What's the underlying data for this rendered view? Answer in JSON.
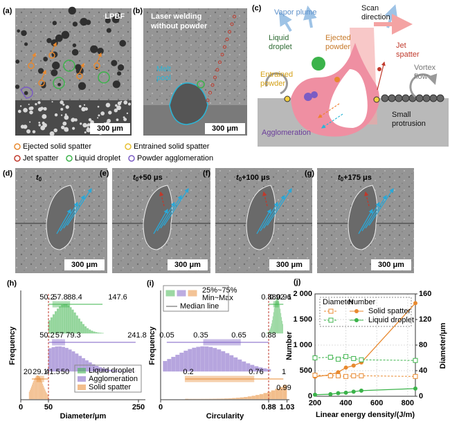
{
  "a": {
    "letter": "(a)",
    "label": "LPBF",
    "scale_bar": "300 μm"
  },
  "b": {
    "letter": "(b)",
    "title_lines": [
      "Laser welding",
      "without powder"
    ],
    "melt_pool_lines": [
      "Melt",
      "pool"
    ],
    "scale_bar": "300 μm"
  },
  "c": {
    "letter": "(c)",
    "vapor_plume": "Vapor plume",
    "scan_direction": [
      "Scan",
      "direction"
    ],
    "liquid_droplet": [
      "Liquid",
      "droplet"
    ],
    "ejected_powder": [
      "Ejected",
      "powder"
    ],
    "jet_spatter": [
      "Jet",
      "spatter"
    ],
    "entrained_powder": [
      "Entrained",
      "powder"
    ],
    "vortex_flow": [
      "Vortex",
      "flow"
    ],
    "agglomeration": "Agglomeration",
    "small_protrusion": [
      "Small",
      "protrusion"
    ]
  },
  "legend": [
    {
      "label": "Ejected solid spatter",
      "color": "#e8892f"
    },
    {
      "label": "Entrained solid spatter",
      "color": "#e8c02f"
    },
    {
      "label": "Jet spatter",
      "color": "#c0392b"
    },
    {
      "label": "Liquid droplet",
      "color": "#3bb34a"
    },
    {
      "label": "Powder agglomeration",
      "color": "#7b5cc4"
    }
  ],
  "frames": [
    {
      "letter": "(d)",
      "time": {
        "symbol": "t",
        "subscript": "0"
      },
      "scale_bar": "300 μm"
    },
    {
      "letter": "(e)",
      "time": {
        "symbol": "t",
        "subscript": "0",
        "offset": "+50 μs"
      },
      "scale_bar": "300 μm"
    },
    {
      "letter": "(f)",
      "time": {
        "symbol": "t",
        "subscript": "0",
        "offset": "+100 μs"
      },
      "scale_bar": "300 μm"
    },
    {
      "letter": "(g)",
      "time": {
        "symbol": "t",
        "subscript": "0",
        "offset": "+175 μs"
      },
      "scale_bar": "300 μm"
    }
  ],
  "h": {
    "letter": "(h)",
    "y_label": "Frequency",
    "x_label": "Diameter/μm",
    "x_ticks": [
      0,
      50,
      250
    ],
    "boxes": [
      {
        "stats": [
          50.2,
          57.8,
          88.4,
          147.6
        ],
        "color": "#3bb34a"
      },
      {
        "stats": [
          50.2,
          57,
          79.3,
          241.8
        ],
        "color": "#7b5cc4"
      },
      {
        "stats": [
          20,
          29.1,
          41.5,
          50
        ],
        "color": "#e8892f"
      }
    ],
    "legend": [
      "Liquid droplet",
      "Agglomeration",
      "Solid spatter"
    ]
  },
  "i": {
    "letter": "(i)",
    "y_label": "Frequency",
    "x_label": "Circularity",
    "x_ticks": [
      0,
      0.88,
      1.03
    ],
    "box_legend": [
      "25%~75%",
      "Min~Max",
      "Median line"
    ],
    "boxes": [
      {
        "stats": [
          0.88,
          0.92,
          0.96,
          1
        ],
        "color": "#3bb34a"
      },
      {
        "stats": [
          0.05,
          0.35,
          0.65,
          0.88
        ],
        "color": "#7b5cc4"
      },
      {
        "stats": [
          0.2,
          0.76,
          1
        ],
        "color": "#e8892f",
        "extra": 0.99
      }
    ]
  },
  "j": {
    "letter": "(j)",
    "type": "scatter",
    "x_label": "Linear energy density/(J/m)",
    "y_label": "Number",
    "y2_label": "Diameter/μm",
    "x": [
      200,
      300,
      350,
      400,
      450,
      500,
      850
    ],
    "xlim": [
      200,
      850
    ],
    "xticks": [
      200,
      400,
      600,
      800
    ],
    "ylim": [
      0,
      2000
    ],
    "yticks": [
      0,
      500,
      {
        "value": 1000,
        "label": "1 000"
      },
      {
        "value": 1500,
        "label": "1 500"
      },
      {
        "value": 2000,
        "label": "2 000"
      }
    ],
    "y2lim": [
      0,
      160
    ],
    "y2ticks": [
      0,
      40,
      80,
      120,
      160
    ],
    "grid": true,
    "legend_headers": [
      "Diameter",
      "Number"
    ],
    "series": [
      {
        "name": "Solid spatter",
        "color": "#e8892f",
        "number": [
          380,
          420,
          470,
          560,
          600,
          660,
          1820
        ],
        "diameter": [
          33,
          32,
          32,
          31,
          32,
          32,
          31
        ]
      },
      {
        "name": "Liquid droplet",
        "color": "#3bb34a",
        "number": [
          30,
          40,
          60,
          70,
          90,
          110,
          150
        ],
        "diameter": [
          60,
          61,
          58,
          62,
          59,
          57,
          56
        ]
      }
    ]
  }
}
